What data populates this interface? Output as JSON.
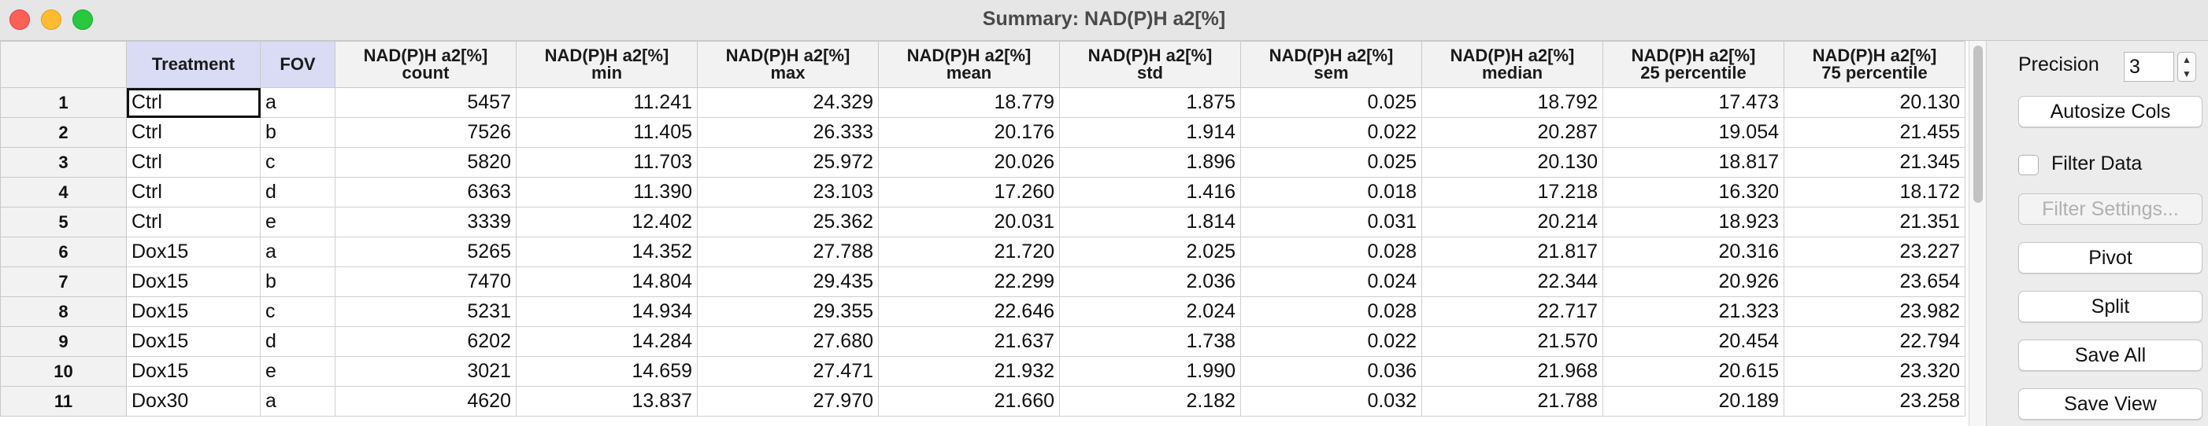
{
  "window": {
    "title": "Summary: NAD(P)H a2[%]"
  },
  "table": {
    "columns": [
      "Treatment",
      "FOV",
      "NAD(P)H a2[%]\ncount",
      "NAD(P)H a2[%]\nmin",
      "NAD(P)H a2[%]\nmax",
      "NAD(P)H a2[%]\nmean",
      "NAD(P)H a2[%]\nstd",
      "NAD(P)H a2[%]\nsem",
      "NAD(P)H a2[%]\nmedian",
      "NAD(P)H a2[%]\n25 percentile",
      "NAD(P)H a2[%]\n75 percentile"
    ],
    "rows": [
      {
        "n": "1",
        "cells": [
          "Ctrl",
          "a",
          "5457",
          "11.241",
          "24.329",
          "18.779",
          "1.875",
          "0.025",
          "18.792",
          "17.473",
          "20.130"
        ]
      },
      {
        "n": "2",
        "cells": [
          "Ctrl",
          "b",
          "7526",
          "11.405",
          "26.333",
          "20.176",
          "1.914",
          "0.022",
          "20.287",
          "19.054",
          "21.455"
        ]
      },
      {
        "n": "3",
        "cells": [
          "Ctrl",
          "c",
          "5820",
          "11.703",
          "25.972",
          "20.026",
          "1.896",
          "0.025",
          "20.130",
          "18.817",
          "21.345"
        ]
      },
      {
        "n": "4",
        "cells": [
          "Ctrl",
          "d",
          "6363",
          "11.390",
          "23.103",
          "17.260",
          "1.416",
          "0.018",
          "17.218",
          "16.320",
          "18.172"
        ]
      },
      {
        "n": "5",
        "cells": [
          "Ctrl",
          "e",
          "3339",
          "12.402",
          "25.362",
          "20.031",
          "1.814",
          "0.031",
          "20.214",
          "18.923",
          "21.351"
        ]
      },
      {
        "n": "6",
        "cells": [
          "Dox15",
          "a",
          "5265",
          "14.352",
          "27.788",
          "21.720",
          "2.025",
          "0.028",
          "21.817",
          "20.316",
          "23.227"
        ]
      },
      {
        "n": "7",
        "cells": [
          "Dox15",
          "b",
          "7470",
          "14.804",
          "29.435",
          "22.299",
          "2.036",
          "0.024",
          "22.344",
          "20.926",
          "23.654"
        ]
      },
      {
        "n": "8",
        "cells": [
          "Dox15",
          "c",
          "5231",
          "14.934",
          "29.355",
          "22.646",
          "2.024",
          "0.028",
          "22.717",
          "21.323",
          "23.982"
        ]
      },
      {
        "n": "9",
        "cells": [
          "Dox15",
          "d",
          "6202",
          "14.284",
          "27.680",
          "21.637",
          "1.738",
          "0.022",
          "21.570",
          "20.454",
          "22.794"
        ]
      },
      {
        "n": "10",
        "cells": [
          "Dox15",
          "e",
          "3021",
          "14.659",
          "27.471",
          "21.932",
          "1.990",
          "0.036",
          "21.968",
          "20.615",
          "23.320"
        ]
      },
      {
        "n": "11",
        "cells": [
          "Dox30",
          "a",
          "4620",
          "13.837",
          "27.970",
          "21.660",
          "2.182",
          "0.032",
          "21.788",
          "20.189",
          "23.258"
        ]
      }
    ]
  },
  "panel": {
    "precision_label": "Precision",
    "precision_value": "3",
    "autosize_label": "Autosize Cols",
    "filter_data_label": "Filter Data",
    "filter_data_checked": false,
    "filter_settings_label": "Filter Settings...",
    "pivot_label": "Pivot",
    "split_label": "Split",
    "save_all_label": "Save All",
    "save_view_label": "Save View"
  },
  "icons": {
    "stepper": "stepper-icon"
  },
  "colors": {
    "close": "#fe5f57",
    "minimize": "#febc2e",
    "maximize": "#28c840",
    "highlighted_header": "#dadcf6"
  }
}
